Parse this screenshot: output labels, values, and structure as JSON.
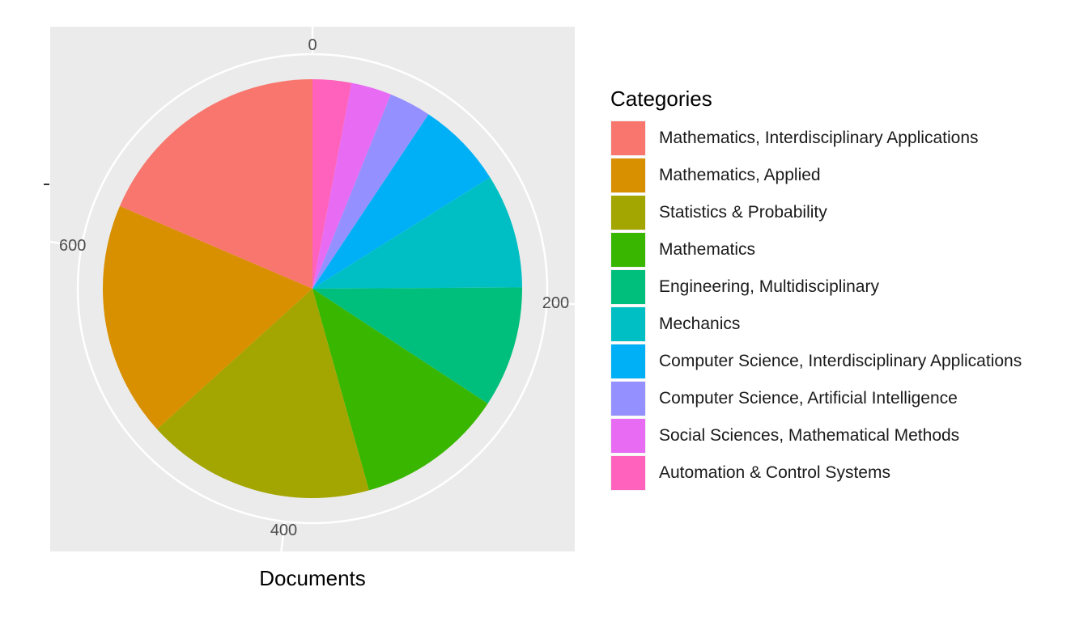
{
  "chart_data": {
    "type": "pie",
    "xlabel": "Documents",
    "legend_title": "Categories",
    "legend_position": "right",
    "axis_ticks": [
      "0",
      "200",
      "400",
      "600"
    ],
    "axis_range": [
      0,
      771
    ],
    "grid": true,
    "series": [
      {
        "name": "Mathematics, Interdisciplinary Applications",
        "value": 143,
        "color": "#F8766D"
      },
      {
        "name": "Mathematics, Applied",
        "value": 140,
        "color": "#D89000"
      },
      {
        "name": "Statistics & Probability",
        "value": 136,
        "color": "#A3A500"
      },
      {
        "name": "Mathematics",
        "value": 88,
        "color": "#39B600"
      },
      {
        "name": "Engineering, Multidisciplinary",
        "value": 72,
        "color": "#00BF7D"
      },
      {
        "name": "Mechanics",
        "value": 68,
        "color": "#00BFC4"
      },
      {
        "name": "Computer Science, Interdisciplinary Applications",
        "value": 52,
        "color": "#00B0F6"
      },
      {
        "name": "Computer Science, Artificial Intelligence",
        "value": 25,
        "color": "#9590FF"
      },
      {
        "name": "Social Sciences, Mathematical Methods",
        "value": 24,
        "color": "#E76BF3"
      },
      {
        "name": "Automation & Control Systems",
        "value": 23,
        "color": "#FF62BC"
      }
    ]
  }
}
